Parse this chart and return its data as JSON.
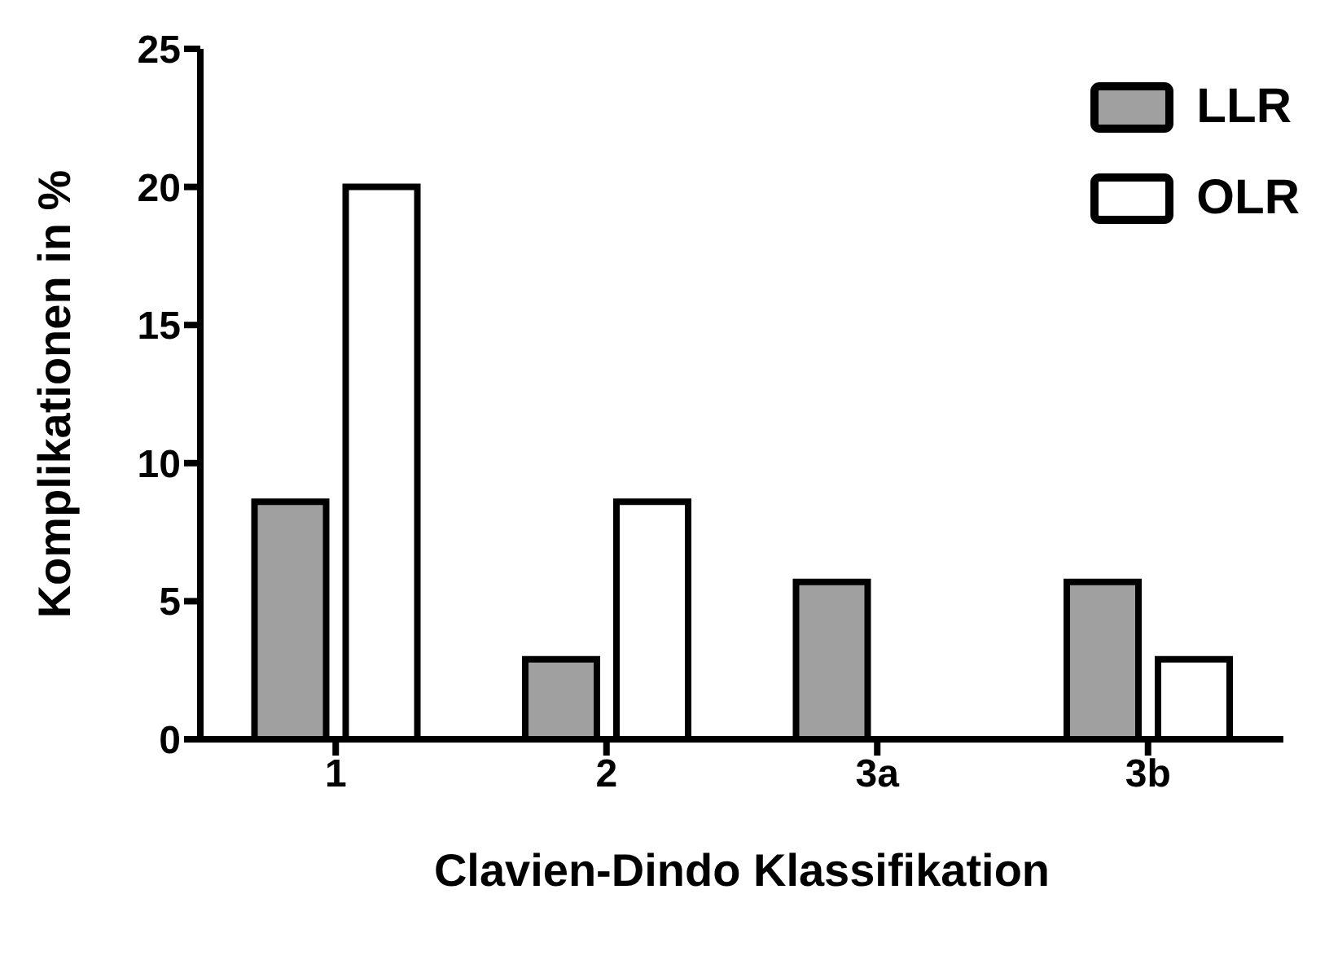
{
  "chart_data": {
    "type": "bar",
    "xlabel": "Clavien-Dindo Klassifikation",
    "ylabel": "Komplikationen in %",
    "categories": [
      "1",
      "2",
      "3a",
      "3b"
    ],
    "series": [
      {
        "name": "LLR",
        "color": "#a0a0a0",
        "values": [
          8.6,
          2.9,
          5.7,
          5.7
        ]
      },
      {
        "name": "OLR",
        "color": "#ffffff",
        "values": [
          20,
          8.6,
          0,
          2.9
        ]
      }
    ],
    "ylim": [
      0,
      25
    ],
    "yticks": [
      0,
      5,
      10,
      15,
      20,
      25
    ],
    "grid": false,
    "legend": "top right"
  }
}
